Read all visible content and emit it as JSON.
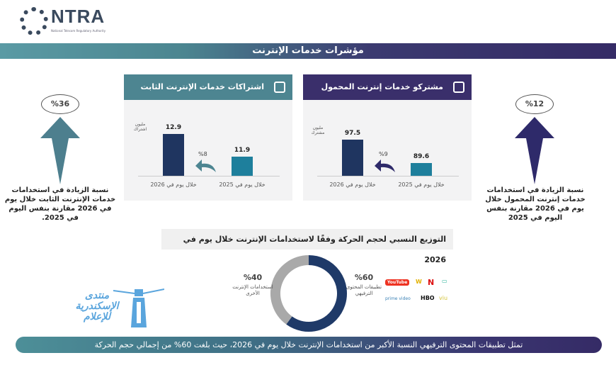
{
  "header": {
    "logo_text": "NTRA",
    "logo_subtitle": "National Telecom Regulatory Authority",
    "title": "مؤشرات خدمات الإنترنت"
  },
  "fixed_panel": {
    "title": "اشتراكات خدمات الإنترنت الثابت",
    "unit": "مليون اشتراك",
    "growth": "%8",
    "color": "#4d8591"
  },
  "mobile_panel": {
    "title": "مشتركو خدمات إنترنت المحمول",
    "unit": "مليون مشترك",
    "growth": "%9",
    "color": "#3a2f6b"
  },
  "left_callout": {
    "value": "%36",
    "text": "نسبة الزيادة في استخدامات خدمات الإنترنت الثابت خلال يوم في 2026 مقارنة بنفس اليوم في 2025."
  },
  "right_callout": {
    "value": "%12",
    "text": "نسبة الزيادة في استخدامات خدمات إنترنت المحمول خلال يوم في 2026 مقارنة بنفس اليوم في 2025"
  },
  "distribution": {
    "title": "التوزيع النسبي لحجم الحركة وفقًا لاستخدامات الإنترنت خلال يوم في 2026",
    "apps": [
      "YouTube",
      "W",
      "N",
      "▭",
      "prime video",
      "HBO",
      "viu"
    ]
  },
  "watermark": {
    "line1": "منتدى",
    "line2": "الإسكندرية",
    "line3": "للإعلام"
  },
  "footer": "تمثل تطبيقات المحتوى الترفيهي النسبة الأكبر من استخدامات الإنترنت خلال يوم في 2026، حيث بلغت 60% من إجمالي حجم الحركة",
  "chart_data": [
    {
      "type": "bar",
      "title": "اشتراكات خدمات الإنترنت الثابت",
      "ylabel": "مليون اشتراك",
      "categories": [
        "خلال يوم في 2026",
        "خلال يوم في 2025"
      ],
      "values": [
        12.9,
        11.9
      ],
      "value_labels": [
        "12.9",
        "11.9"
      ],
      "colors": [
        "#1f3560",
        "#1e7f9c"
      ]
    },
    {
      "type": "bar",
      "title": "مشتركو خدمات إنترنت المحمول",
      "ylabel": "مليون مشترك",
      "categories": [
        "خلال يوم في 2026",
        "خلال يوم في 2025"
      ],
      "values": [
        97.5,
        89.6
      ],
      "value_labels": [
        "97.5",
        "89.6"
      ],
      "colors": [
        "#1f3560",
        "#1e7f9c"
      ]
    },
    {
      "type": "pie",
      "donut": true,
      "slices": [
        {
          "label": "تطبيقات المحتوى الترفيهي",
          "value": 60,
          "value_label": "%60",
          "color": "#1f3a68"
        },
        {
          "label": "استخدامات الإنترنت الأخرى",
          "value": 40,
          "value_label": "%40",
          "color": "#a9a9a9"
        }
      ]
    }
  ]
}
